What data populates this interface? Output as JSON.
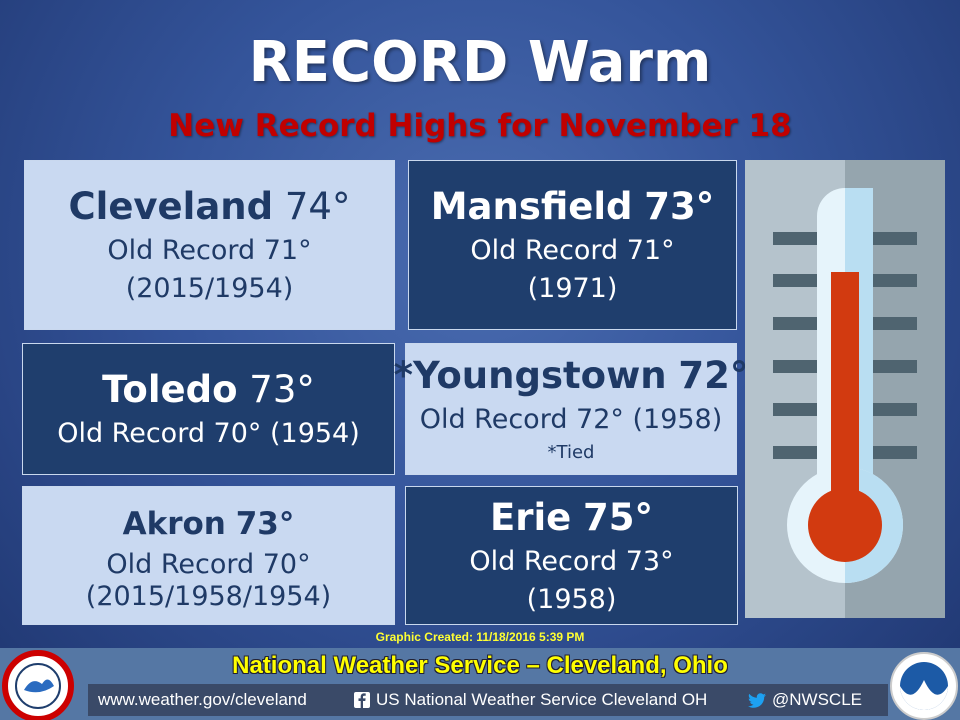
{
  "header": {
    "title": "RECORD Warm",
    "subtitle": "New Record Highs for November 18"
  },
  "records": [
    {
      "city": "Cleveland",
      "high": "74°",
      "lines": [
        "Old Record 71°",
        "(2015/1954)"
      ]
    },
    {
      "city": "Mansfield",
      "high": "73°",
      "lines": [
        "Old Record 71°",
        "(1971)"
      ]
    },
    {
      "city": "Toledo",
      "high": "73°",
      "lines": [
        "Old Record 70° (1954)"
      ]
    },
    {
      "city": "*Youngstown",
      "high": "72°",
      "lines": [
        "Old Record 72° (1958)",
        "*Tied"
      ]
    },
    {
      "city": "Akron",
      "high": "73°",
      "lines": [
        "Old Record 70°",
        "(2015/1958/1954)"
      ]
    },
    {
      "city": "Erie",
      "high": "75°",
      "lines": [
        "Old Record 73°",
        "(1958)"
      ]
    }
  ],
  "footer": {
    "created": "Graphic Created: 11/18/2016 5:39 PM",
    "organization": "National Weather Service – Cleveland, Ohio",
    "website": "www.weather.gov/cleveland",
    "facebook": "US National Weather Service Cleveland OH",
    "twitter": "@NWSCLE"
  }
}
